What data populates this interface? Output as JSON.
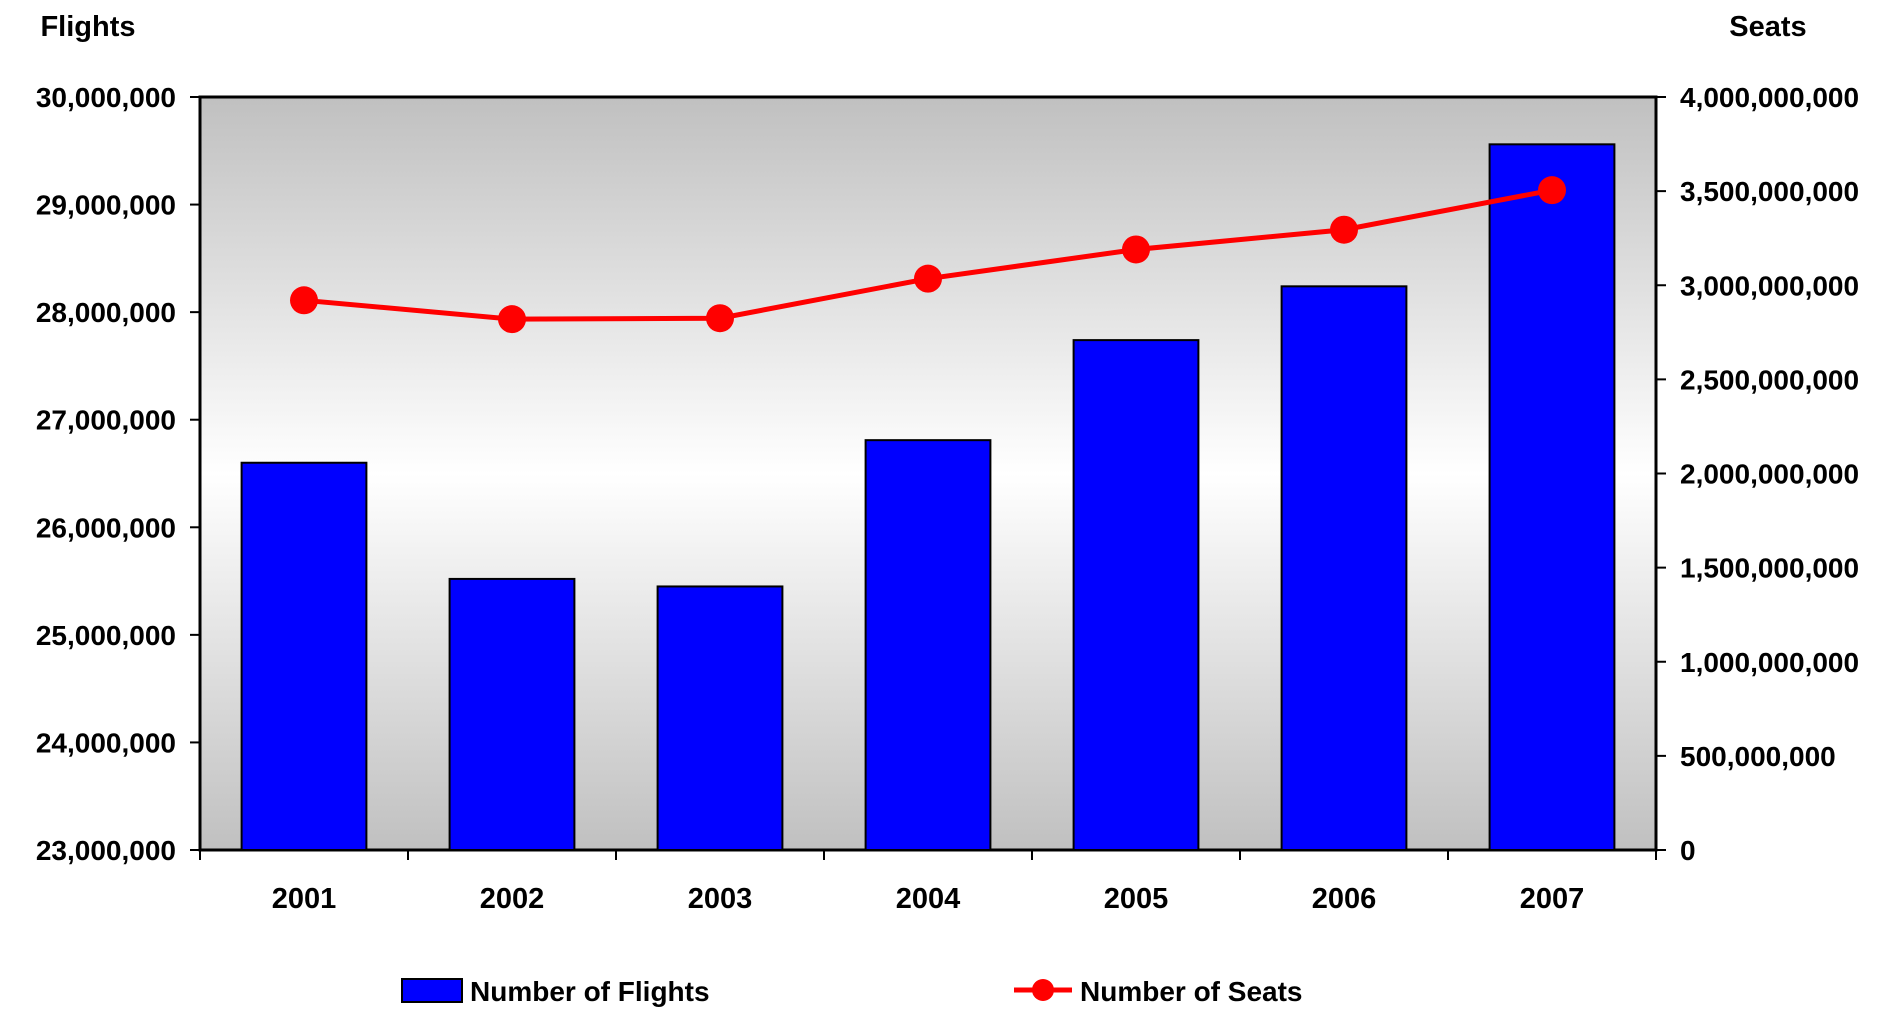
{
  "chart_data": {
    "type": "bar",
    "categories": [
      "2001",
      "2002",
      "2003",
      "2004",
      "2005",
      "2006",
      "2007"
    ],
    "series": [
      {
        "name": "Number of Flights",
        "type": "bar",
        "axis": "left",
        "values": [
          26600000,
          25520000,
          25450000,
          26810000,
          27740000,
          28240000,
          29560000
        ]
      },
      {
        "name": "Number of Seats",
        "type": "line",
        "axis": "right",
        "values": [
          2920000000,
          2820000000,
          2825000000,
          3035000000,
          3190000000,
          3295000000,
          3505000000
        ]
      }
    ],
    "ylabel": "Flights",
    "y2label": "Seats",
    "ylim": [
      23000000,
      30000000
    ],
    "y2lim": [
      0,
      4000000000
    ],
    "yticks": [
      "23,000,000",
      "24,000,000",
      "25,000,000",
      "26,000,000",
      "27,000,000",
      "28,000,000",
      "29,000,000",
      "30,000,000"
    ],
    "y2ticks": [
      "0",
      "500,000,000",
      "1,000,000,000",
      "1,500,000,000",
      "2,000,000,000",
      "2,500,000,000",
      "3,000,000,000",
      "3,500,000,000",
      "4,000,000,000"
    ],
    "grid": false,
    "legend": "bottom",
    "colors": {
      "bars": "#0000ff",
      "line": "#ff0000",
      "plot_bg_edge": "#c0c0c0",
      "plot_bg_center": "#ffffff"
    }
  }
}
